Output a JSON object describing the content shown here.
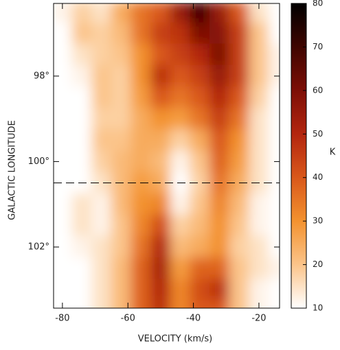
{
  "chart_data": {
    "type": "heatmap",
    "x_label": "VELOCITY (km/s)",
    "y_label": "GALACTIC LONGITUDE",
    "colorbar_label": "K",
    "x": [
      -80,
      -74,
      -68,
      -62,
      -56,
      -50,
      -44,
      -38,
      -32,
      -26,
      -20,
      -14
    ],
    "y": [
      96.5,
      97,
      97.5,
      98,
      98.5,
      99,
      99.5,
      100,
      100.5,
      101,
      101.5,
      102,
      102.5,
      103,
      103.5
    ],
    "z": [
      [
        12,
        18,
        15,
        25,
        35,
        40,
        55,
        70,
        55,
        40,
        15,
        10
      ],
      [
        10,
        20,
        18,
        22,
        35,
        45,
        48,
        60,
        58,
        45,
        20,
        10
      ],
      [
        10,
        15,
        18,
        20,
        30,
        40,
        45,
        50,
        60,
        45,
        20,
        12
      ],
      [
        10,
        12,
        20,
        18,
        30,
        48,
        40,
        45,
        55,
        45,
        20,
        12
      ],
      [
        10,
        10,
        20,
        18,
        28,
        40,
        35,
        40,
        50,
        40,
        18,
        10
      ],
      [
        10,
        10,
        18,
        18,
        25,
        30,
        28,
        35,
        45,
        35,
        15,
        10
      ],
      [
        10,
        10,
        20,
        20,
        25,
        25,
        18,
        25,
        40,
        30,
        15,
        10
      ],
      [
        10,
        10,
        18,
        22,
        25,
        22,
        12,
        20,
        38,
        28,
        15,
        10
      ],
      [
        10,
        10,
        15,
        22,
        28,
        25,
        10,
        18,
        35,
        25,
        15,
        10
      ],
      [
        10,
        15,
        12,
        22,
        30,
        32,
        12,
        20,
        32,
        22,
        12,
        10
      ],
      [
        10,
        15,
        12,
        20,
        32,
        42,
        18,
        22,
        30,
        20,
        12,
        10
      ],
      [
        10,
        12,
        15,
        20,
        35,
        50,
        22,
        25,
        30,
        18,
        15,
        10
      ],
      [
        10,
        10,
        15,
        22,
        38,
        52,
        28,
        38,
        38,
        20,
        15,
        12
      ],
      [
        10,
        10,
        15,
        22,
        38,
        50,
        32,
        42,
        48,
        20,
        12,
        10
      ],
      [
        10,
        10,
        15,
        22,
        38,
        48,
        32,
        40,
        40,
        20,
        12,
        10
      ]
    ],
    "xlim": [
      -82.7,
      -13.7
    ],
    "xticks": [
      -80,
      -60,
      -40,
      -20
    ],
    "ylim": [
      96.3,
      103.43
    ],
    "yticks": [
      {
        "value": 98,
        "label": "98°"
      },
      {
        "value": 100,
        "label": "100°"
      },
      {
        "value": 102,
        "label": "102°"
      }
    ],
    "zlim": [
      10,
      80
    ],
    "zticks": [
      10,
      20,
      30,
      40,
      50,
      60,
      70,
      80
    ],
    "colormap": [
      "#ffffff",
      "#fbc48a",
      "#f3922f",
      "#d9581b",
      "#b3260f",
      "#7d0f06",
      "#3f0500",
      "#000000"
    ],
    "reference_line": 100.5
  }
}
